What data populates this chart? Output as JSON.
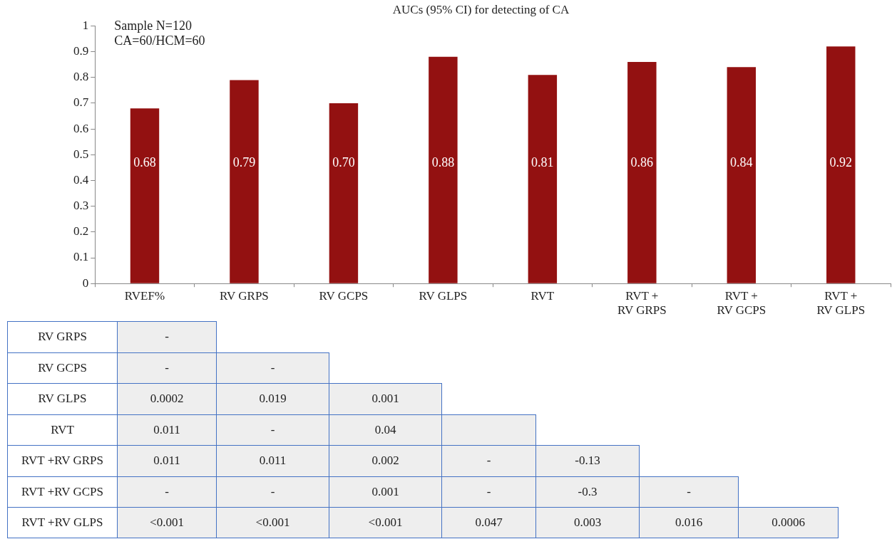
{
  "chart_data": [
    {
      "type": "bar",
      "title": "AUCs (95% CI) for detecting of CA",
      "categories": [
        "RVEF%",
        "RV GRPS",
        "RV GCPS",
        "RV GLPS",
        "RVT",
        "RVT +\nRV GRPS",
        "RVT +\nRV GCPS",
        "RVT +\nRV GLPS"
      ],
      "values": [
        0.68,
        0.79,
        0.7,
        0.88,
        0.81,
        0.86,
        0.84,
        0.92
      ],
      "value_labels": [
        "0.68",
        "0.79",
        "0.70",
        "0.88",
        "0.81",
        "0.86",
        "0.84",
        "0.92"
      ],
      "color": "#931111",
      "ylim": [
        0,
        1
      ],
      "yticks": [
        0,
        0.1,
        0.2,
        0.3,
        0.4,
        0.5,
        0.6,
        0.7,
        0.8,
        0.9,
        1
      ],
      "grid": false,
      "legend": false,
      "annotations": [
        "Sample N=120",
        "CA=60/HCM=60"
      ]
    },
    {
      "type": "heatmap",
      "categories": [
        null,
        null,
        null,
        null,
        null,
        null,
        null
      ],
      "y_categories": [
        "RV GRPS",
        "RV GCPS",
        "RV GLPS",
        "RVT",
        "RVT +RV GRPS",
        "RVT +RV GCPS",
        "RVT +RV GLPS"
      ],
      "cells": [
        [
          null,
          null,
          null,
          null,
          null,
          null,
          null
        ],
        [
          null,
          null,
          null,
          null,
          null,
          null,
          null
        ],
        [
          null,
          null,
          null,
          null,
          null,
          null,
          null
        ],
        [
          null,
          null,
          null,
          null,
          null,
          null,
          null
        ],
        [
          null,
          null,
          null,
          null,
          null,
          null,
          null
        ],
        [
          null,
          null,
          null,
          null,
          null,
          null,
          null
        ],
        [
          null,
          null,
          null,
          null,
          null,
          null,
          null
        ]
      ],
      "cell_labels": [
        [
          "-",
          null,
          null,
          null,
          null,
          null,
          null
        ],
        [
          "-",
          "-",
          null,
          null,
          null,
          null,
          null
        ],
        [
          "0.0002",
          "0.019",
          "0.001",
          null,
          null,
          null,
          null
        ],
        [
          "0.011",
          "-",
          "0.04",
          null,
          null,
          null,
          null
        ],
        [
          "0.011",
          "0.011",
          "0.002",
          "-",
          "-0.13",
          null,
          null
        ],
        [
          "-",
          "-",
          "0.001",
          "-",
          "-0.3",
          "-",
          null
        ],
        [
          "<0.001",
          "<0.001",
          "<0.001",
          "0.047",
          "0.003",
          "0.016",
          "0.0006"
        ]
      ]
    }
  ]
}
